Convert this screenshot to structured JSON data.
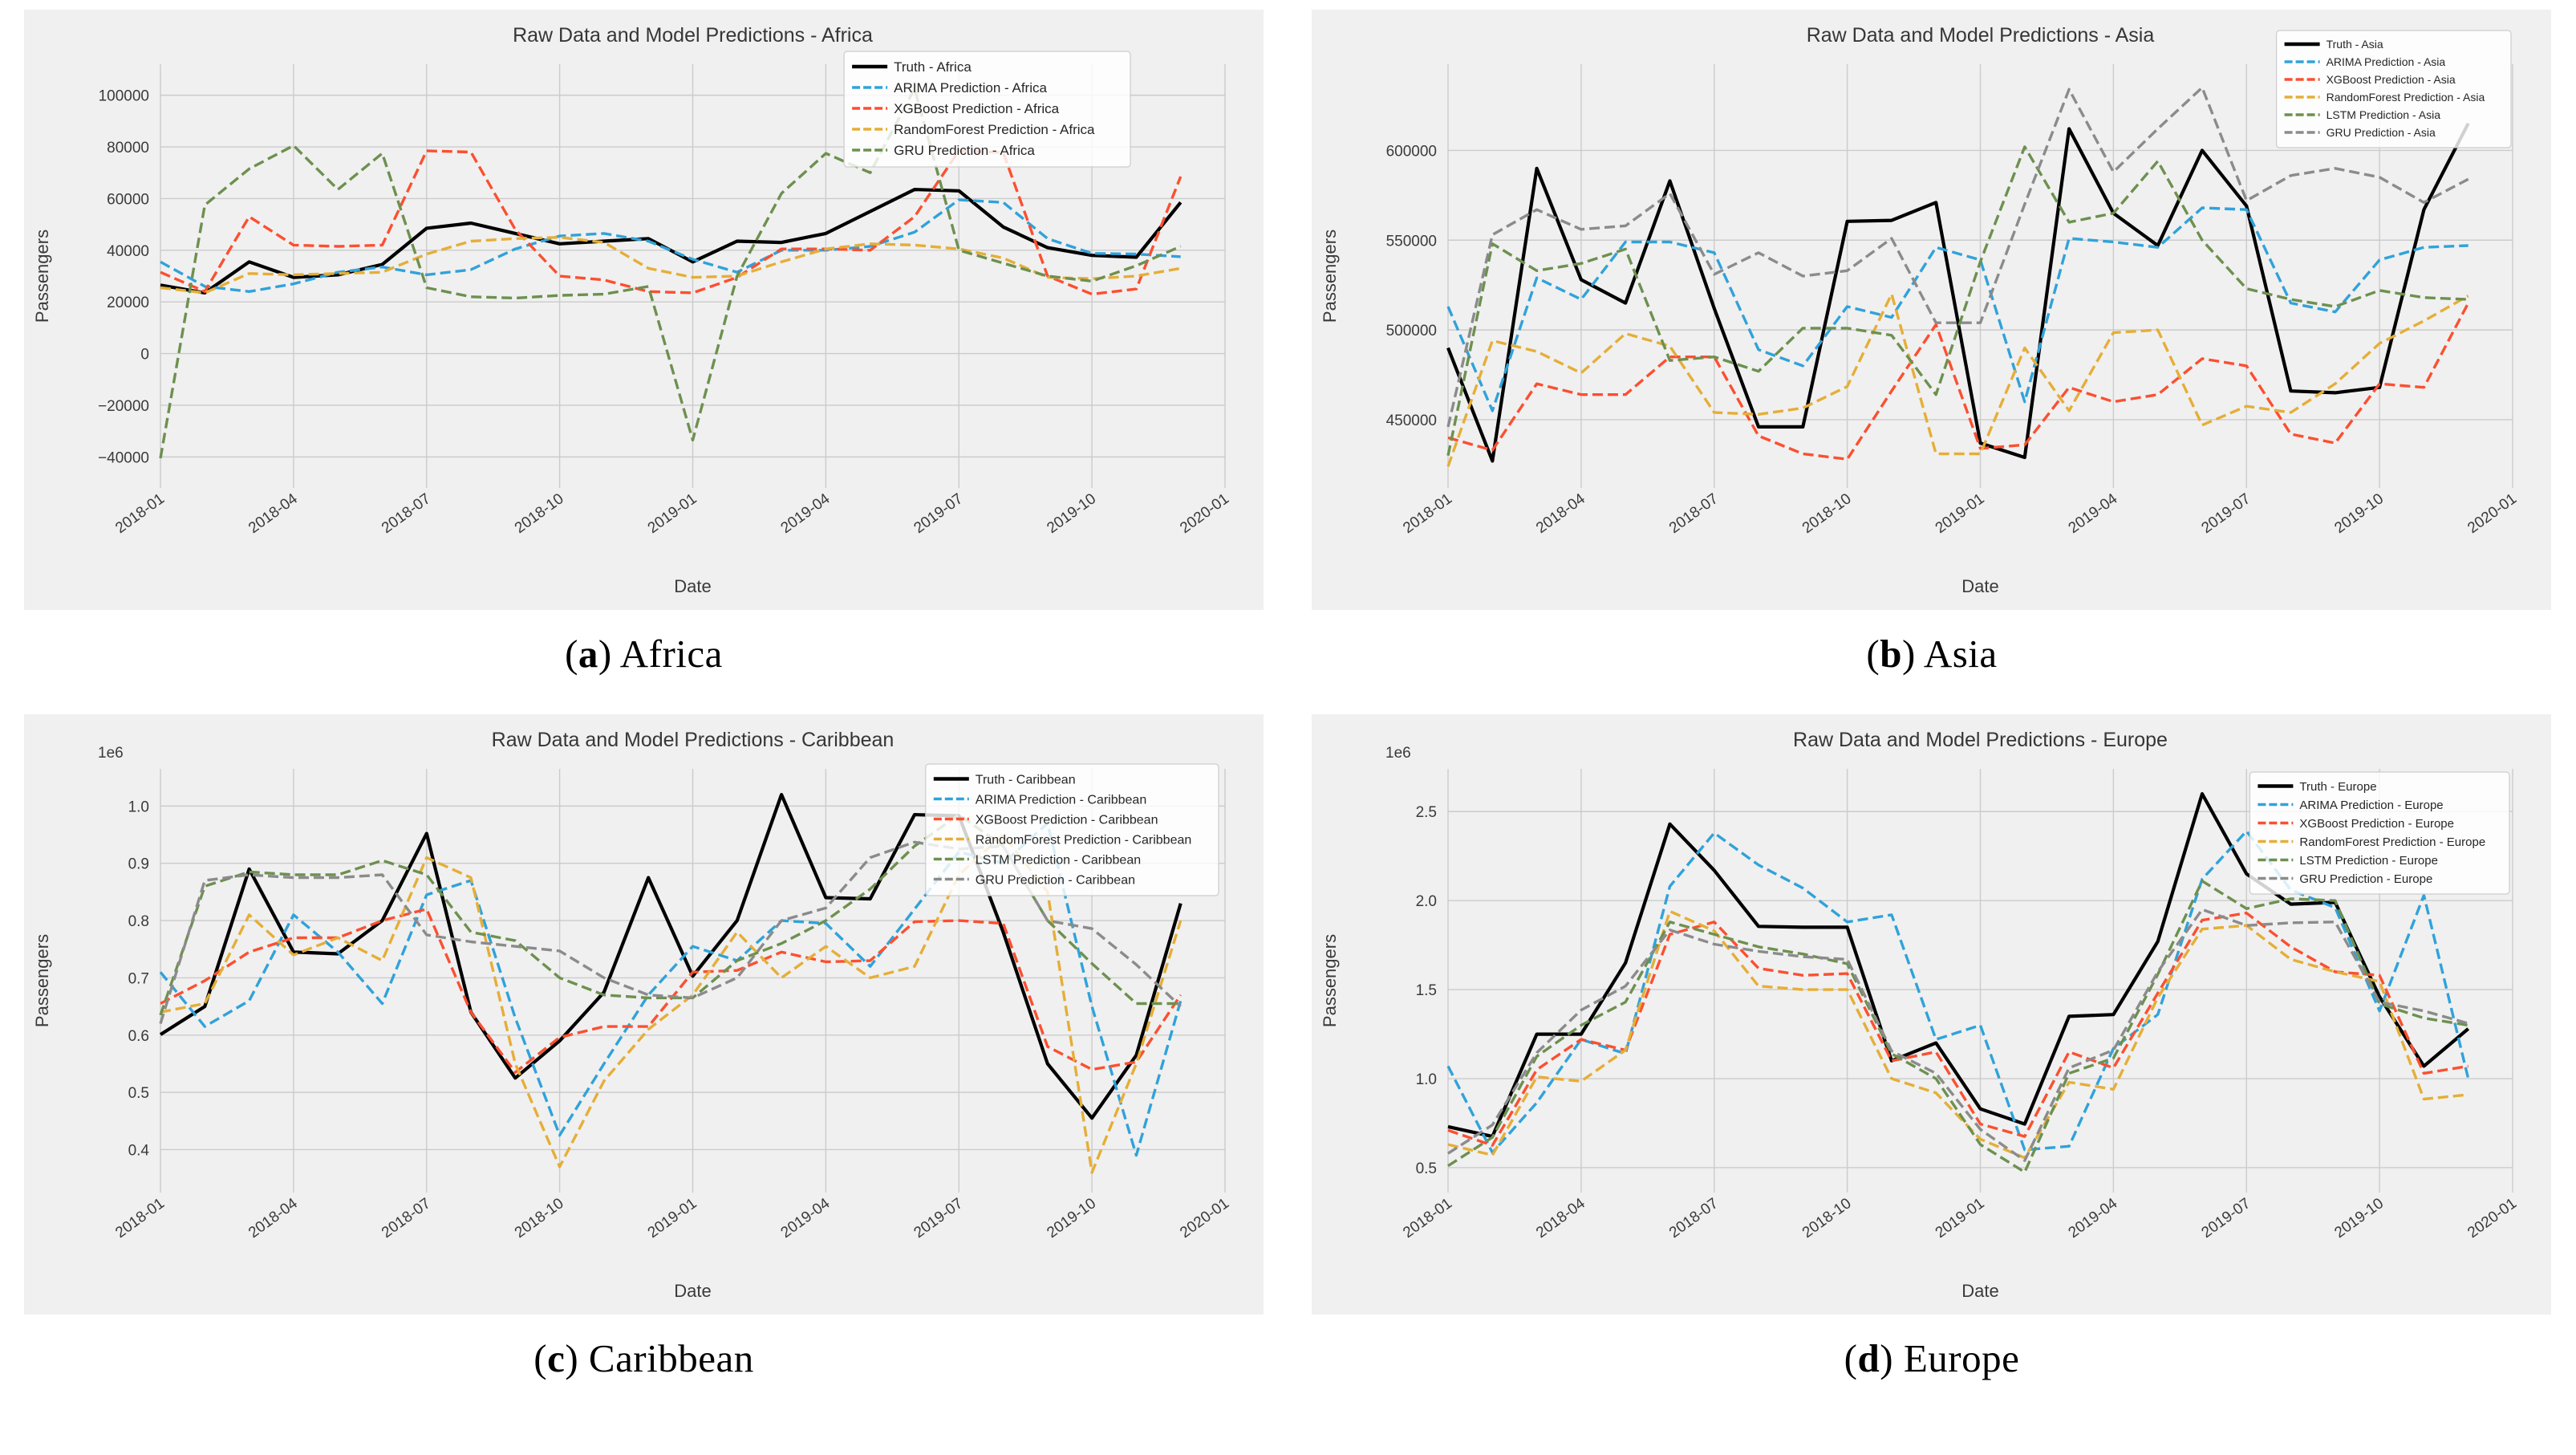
{
  "page": {
    "background": "#ffffff",
    "figure_background": "#f0f0f0",
    "grid_color": "#cbcbcb",
    "tick_color": "#3a3a3a",
    "title_color": "#363636",
    "legend_border": "#cccccc"
  },
  "captions": [
    {
      "open": "(",
      "letter": "a",
      "rest": ") Africa"
    },
    {
      "open": "(",
      "letter": "b",
      "rest": ") Asia"
    },
    {
      "open": "(",
      "letter": "c",
      "rest": ") Caribbean"
    },
    {
      "open": "(",
      "letter": "d",
      "rest": ") Europe"
    }
  ],
  "chart_data": [
    {
      "type": "line",
      "title": "Raw Data and Model Predictions - Africa",
      "xlabel": "Date",
      "ylabel": "Passengers",
      "y_offset_text": "",
      "grid": true,
      "legend_position": "upper right",
      "x": [
        "2018-01",
        "2018-02",
        "2018-03",
        "2018-04",
        "2018-05",
        "2018-06",
        "2018-07",
        "2018-08",
        "2018-09",
        "2018-10",
        "2018-11",
        "2018-12",
        "2019-01",
        "2019-02",
        "2019-03",
        "2019-04",
        "2019-05",
        "2019-06",
        "2019-07",
        "2019-08",
        "2019-09",
        "2019-10",
        "2019-11",
        "2019-12"
      ],
      "x_tick_labels": [
        "2018-01",
        "2018-04",
        "2018-07",
        "2018-10",
        "2019-01",
        "2019-04",
        "2019-07",
        "2019-10",
        "2020-01"
      ],
      "ylim": [
        -52000,
        112000
      ],
      "yticks": [
        -40000,
        -20000,
        0,
        20000,
        40000,
        60000,
        80000,
        100000
      ],
      "ytick_labels": [
        "−40000",
        "−20000",
        "0",
        "20000",
        "40000",
        "60000",
        "80000",
        "100000"
      ],
      "series": [
        {
          "name": "Truth - Africa",
          "color": "#000000",
          "dash": "solid",
          "values": [
            26500,
            23500,
            35500,
            29500,
            30500,
            34500,
            48500,
            50500,
            46500,
            42500,
            43500,
            44500,
            35500,
            43500,
            43000,
            46500,
            55000,
            63500,
            63000,
            49000,
            41000,
            38000,
            37300,
            58500
          ]
        },
        {
          "name": "ARIMA Prediction - Africa",
          "color": "#30a2da",
          "dash": "dashed",
          "values": [
            35500,
            26000,
            24000,
            27000,
            31500,
            33500,
            30500,
            32500,
            40500,
            45500,
            46500,
            43500,
            36500,
            31500,
            40000,
            40000,
            41500,
            47000,
            59500,
            58500,
            44500,
            38800,
            38500,
            37500
          ]
        },
        {
          "name": "XGBoost Prediction - Africa",
          "color": "#fc4f30",
          "dash": "dashed",
          "values": [
            31500,
            24000,
            53000,
            42000,
            41500,
            42000,
            78500,
            78000,
            48000,
            30000,
            28500,
            24000,
            23500,
            29500,
            40500,
            40500,
            40000,
            53000,
            78500,
            77800,
            30000,
            23000,
            25000,
            68500
          ]
        },
        {
          "name": "RandomForest Prediction - Africa",
          "color": "#e5ae38",
          "dash": "dashed",
          "values": [
            25500,
            23500,
            31000,
            30500,
            31000,
            31500,
            38500,
            43500,
            44500,
            45000,
            43000,
            33000,
            29500,
            30000,
            35500,
            40500,
            42500,
            42000,
            40500,
            37000,
            29500,
            29000,
            30000,
            33000
          ]
        },
        {
          "name": "GRU Prediction - Africa",
          "color": "#6d904f",
          "dash": "dashed",
          "values": [
            -40500,
            57500,
            71500,
            80500,
            63500,
            77500,
            25500,
            22000,
            21500,
            22500,
            23000,
            26000,
            -33500,
            30000,
            62000,
            77500,
            70000,
            102500,
            40000,
            35000,
            30000,
            28000,
            34000,
            41500
          ]
        }
      ]
    },
    {
      "type": "line",
      "title": "Raw Data and Model Predictions - Asia",
      "xlabel": "Date",
      "ylabel": "Passengers",
      "y_offset_text": "",
      "grid": true,
      "legend_position": "upper right",
      "x": [
        "2018-01",
        "2018-02",
        "2018-03",
        "2018-04",
        "2018-05",
        "2018-06",
        "2018-07",
        "2018-08",
        "2018-09",
        "2018-10",
        "2018-11",
        "2018-12",
        "2019-01",
        "2019-02",
        "2019-03",
        "2019-04",
        "2019-05",
        "2019-06",
        "2019-07",
        "2019-08",
        "2019-09",
        "2019-10",
        "2019-11",
        "2019-12"
      ],
      "x_tick_labels": [
        "2018-01",
        "2018-04",
        "2018-07",
        "2018-10",
        "2019-01",
        "2019-04",
        "2019-07",
        "2019-10",
        "2020-01"
      ],
      "ylim": [
        412000,
        648000
      ],
      "yticks": [
        450000,
        500000,
        550000,
        600000
      ],
      "ytick_labels": [
        "450000",
        "500000",
        "550000",
        "600000"
      ],
      "series": [
        {
          "name": "Truth - Asia",
          "color": "#000000",
          "dash": "solid",
          "values": [
            490000,
            427000,
            590000,
            528000,
            515000,
            583000,
            512000,
            446000,
            446000,
            560500,
            561000,
            571000,
            437000,
            429000,
            612000,
            565000,
            547000,
            600000,
            569000,
            466000,
            465000,
            468000,
            567000,
            615000
          ]
        },
        {
          "name": "ARIMA Prediction - Asia",
          "color": "#30a2da",
          "dash": "dashed",
          "values": [
            513000,
            455000,
            529000,
            517000,
            549000,
            549000,
            543000,
            489000,
            480000,
            513000,
            507000,
            546000,
            539000,
            460000,
            551000,
            549000,
            546000,
            568000,
            567000,
            515000,
            510000,
            539000,
            546000,
            547000
          ]
        },
        {
          "name": "XGBoost Prediction - Asia",
          "color": "#fc4f30",
          "dash": "dashed",
          "values": [
            440000,
            433000,
            470000,
            464000,
            464000,
            485000,
            485000,
            441000,
            431000,
            428000,
            466000,
            503000,
            434000,
            436000,
            468000,
            460000,
            464000,
            484000,
            480000,
            442000,
            437000,
            470000,
            468000,
            515000
          ]
        },
        {
          "name": "RandomForest Prediction - Asia",
          "color": "#e5ae38",
          "dash": "dashed",
          "values": [
            424000,
            494000,
            488000,
            476000,
            498000,
            491000,
            454000,
            453000,
            456500,
            468500,
            520000,
            431000,
            431000,
            490000,
            455000,
            498500,
            500000,
            447000,
            457500,
            454000,
            470000,
            492500,
            505000,
            519000
          ]
        },
        {
          "name": "LSTM Prediction - Asia",
          "color": "#6d904f",
          "dash": "dashed",
          "values": [
            430000,
            548000,
            533000,
            537000,
            545000,
            483000,
            485000,
            477000,
            501000,
            501000,
            497000,
            464000,
            538000,
            602000,
            560000,
            565000,
            594000,
            550000,
            523000,
            517000,
            513000,
            522000,
            518000,
            517000
          ]
        },
        {
          "name": "GRU Prediction - Asia",
          "color": "#8b8b8b",
          "dash": "dashed",
          "values": [
            446000,
            553000,
            567000,
            556000,
            558000,
            576000,
            531000,
            543000,
            530000,
            533000,
            551000,
            504000,
            504000,
            570000,
            634000,
            588000,
            612000,
            635000,
            572000,
            586000,
            590000,
            585000,
            571000,
            584000
          ]
        }
      ]
    },
    {
      "type": "line",
      "title": "Raw Data and Model Predictions - Caribbean",
      "xlabel": "Date",
      "ylabel": "Passengers",
      "y_offset_text": "1e6",
      "grid": true,
      "legend_position": "upper right",
      "x": [
        "2018-01",
        "2018-02",
        "2018-03",
        "2018-04",
        "2018-05",
        "2018-06",
        "2018-07",
        "2018-08",
        "2018-09",
        "2018-10",
        "2018-11",
        "2018-12",
        "2019-01",
        "2019-02",
        "2019-03",
        "2019-04",
        "2019-05",
        "2019-06",
        "2019-07",
        "2019-08",
        "2019-09",
        "2019-10",
        "2019-11",
        "2019-12"
      ],
      "x_tick_labels": [
        "2018-01",
        "2018-04",
        "2018-07",
        "2018-10",
        "2019-01",
        "2019-04",
        "2019-07",
        "2019-10",
        "2020-01"
      ],
      "ylim": [
        0.325,
        1.065
      ],
      "yticks": [
        0.4,
        0.5,
        0.6,
        0.7,
        0.8,
        0.9,
        1.0
      ],
      "ytick_labels": [
        "0.4",
        "0.5",
        "0.6",
        "0.7",
        "0.8",
        "0.9",
        "1.0"
      ],
      "series": [
        {
          "name": "Truth - Caribbean",
          "color": "#000000",
          "dash": "solid",
          "values": [
            0.601,
            0.65,
            0.89,
            0.745,
            0.742,
            0.8,
            0.952,
            0.64,
            0.525,
            0.59,
            0.675,
            0.875,
            0.703,
            0.8,
            1.02,
            0.84,
            0.838,
            0.985,
            0.983,
            0.78,
            0.55,
            0.455,
            0.565,
            0.83
          ]
        },
        {
          "name": "ARIMA Prediction - Caribbean",
          "color": "#30a2da",
          "dash": "dashed",
          "values": [
            0.71,
            0.615,
            0.66,
            0.81,
            0.745,
            0.655,
            0.845,
            0.87,
            0.63,
            0.425,
            0.55,
            0.67,
            0.755,
            0.73,
            0.8,
            0.795,
            0.72,
            0.82,
            0.92,
            0.9,
            0.97,
            0.65,
            0.39,
            0.66
          ]
        },
        {
          "name": "XGBoost Prediction - Caribbean",
          "color": "#fc4f30",
          "dash": "dashed",
          "values": [
            0.655,
            0.695,
            0.745,
            0.77,
            0.77,
            0.8,
            0.82,
            0.64,
            0.535,
            0.596,
            0.615,
            0.615,
            0.71,
            0.713,
            0.745,
            0.728,
            0.73,
            0.798,
            0.8,
            0.795,
            0.58,
            0.54,
            0.553,
            0.67
          ]
        },
        {
          "name": "RandomForest Prediction - Caribbean",
          "color": "#e5ae38",
          "dash": "dashed",
          "values": [
            0.64,
            0.655,
            0.81,
            0.74,
            0.77,
            0.73,
            0.91,
            0.875,
            0.55,
            0.37,
            0.52,
            0.61,
            0.67,
            0.78,
            0.7,
            0.755,
            0.7,
            0.72,
            0.88,
            0.95,
            0.85,
            0.36,
            0.55,
            0.8
          ]
        },
        {
          "name": "LSTM Prediction - Caribbean",
          "color": "#6d904f",
          "dash": "dashed",
          "values": [
            0.635,
            0.86,
            0.885,
            0.88,
            0.88,
            0.905,
            0.88,
            0.78,
            0.765,
            0.7,
            0.67,
            0.665,
            0.665,
            0.73,
            0.76,
            0.8,
            0.855,
            0.93,
            0.985,
            0.93,
            0.8,
            0.725,
            0.655,
            0.655
          ]
        },
        {
          "name": "GRU Prediction - Caribbean",
          "color": "#8b8b8b",
          "dash": "dashed",
          "values": [
            0.62,
            0.87,
            0.88,
            0.875,
            0.875,
            0.88,
            0.775,
            0.763,
            0.755,
            0.747,
            0.7,
            0.67,
            0.665,
            0.7,
            0.8,
            0.822,
            0.91,
            0.937,
            0.925,
            0.93,
            0.8,
            0.786,
            0.723,
            0.65
          ]
        }
      ]
    },
    {
      "type": "line",
      "title": "Raw Data and Model Predictions - Europe",
      "xlabel": "Date",
      "ylabel": "Passengers",
      "y_offset_text": "1e6",
      "grid": true,
      "legend_position": "upper right",
      "x": [
        "2018-01",
        "2018-02",
        "2018-03",
        "2018-04",
        "2018-05",
        "2018-06",
        "2018-07",
        "2018-08",
        "2018-09",
        "2018-10",
        "2018-11",
        "2018-12",
        "2019-01",
        "2019-02",
        "2019-03",
        "2019-04",
        "2019-05",
        "2019-06",
        "2019-07",
        "2019-08",
        "2019-09",
        "2019-10",
        "2019-11",
        "2019-12"
      ],
      "x_tick_labels": [
        "2018-01",
        "2018-04",
        "2018-07",
        "2018-10",
        "2019-01",
        "2019-04",
        "2019-07",
        "2019-10",
        "2020-01"
      ],
      "ylim": [
        0.36,
        2.74
      ],
      "yticks": [
        0.5,
        1.0,
        1.5,
        2.0,
        2.5
      ],
      "ytick_labels": [
        "0.5",
        "1.0",
        "1.5",
        "2.0",
        "2.5"
      ],
      "series": [
        {
          "name": "Truth - Europe",
          "color": "#000000",
          "dash": "solid",
          "values": [
            0.73,
            0.675,
            1.25,
            1.25,
            1.65,
            2.43,
            2.17,
            1.855,
            1.85,
            1.85,
            1.1,
            1.2,
            0.83,
            0.745,
            1.35,
            1.36,
            1.77,
            2.6,
            2.15,
            1.98,
            1.99,
            1.46,
            1.07,
            1.28
          ]
        },
        {
          "name": "ARIMA Prediction - Europe",
          "color": "#30a2da",
          "dash": "dashed",
          "values": [
            1.07,
            0.585,
            0.865,
            1.22,
            1.14,
            2.08,
            2.38,
            2.2,
            2.07,
            1.88,
            1.92,
            1.22,
            1.3,
            0.6,
            0.62,
            1.17,
            1.36,
            2.12,
            2.39,
            2.06,
            1.96,
            1.38,
            2.03,
            1.0
          ]
        },
        {
          "name": "XGBoost Prediction - Europe",
          "color": "#fc4f30",
          "dash": "dashed",
          "values": [
            0.71,
            0.625,
            1.05,
            1.22,
            1.16,
            1.81,
            1.88,
            1.62,
            1.58,
            1.59,
            1.1,
            1.15,
            0.745,
            0.675,
            1.15,
            1.06,
            1.48,
            1.89,
            1.93,
            1.74,
            1.6,
            1.58,
            1.03,
            1.07
          ]
        },
        {
          "name": "RandomForest Prediction - Europe",
          "color": "#e5ae38",
          "dash": "dashed",
          "values": [
            0.63,
            0.57,
            1.01,
            0.985,
            1.16,
            1.94,
            1.83,
            1.52,
            1.5,
            1.5,
            1.0,
            0.92,
            0.66,
            0.555,
            0.98,
            0.94,
            1.455,
            1.84,
            1.86,
            1.67,
            1.6,
            1.545,
            0.885,
            0.91
          ]
        },
        {
          "name": "LSTM Prediction - Europe",
          "color": "#6d904f",
          "dash": "dashed",
          "values": [
            0.51,
            0.67,
            1.125,
            1.3,
            1.43,
            1.88,
            1.81,
            1.74,
            1.7,
            1.645,
            1.14,
            1.0,
            0.63,
            0.475,
            1.03,
            1.115,
            1.585,
            2.11,
            1.955,
            2.01,
            2.0,
            1.42,
            1.34,
            1.3
          ]
        },
        {
          "name": "GRU Prediction - Europe",
          "color": "#8b8b8b",
          "dash": "dashed",
          "values": [
            0.58,
            0.74,
            1.145,
            1.385,
            1.52,
            1.835,
            1.755,
            1.715,
            1.685,
            1.67,
            1.155,
            1.03,
            0.715,
            0.54,
            1.06,
            1.16,
            1.6,
            1.95,
            1.86,
            1.875,
            1.88,
            1.43,
            1.38,
            1.31
          ]
        }
      ]
    }
  ]
}
